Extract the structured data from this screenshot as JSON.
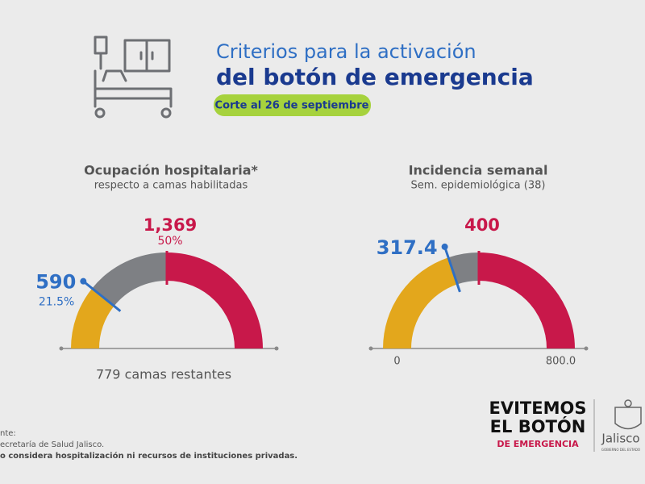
{
  "header": {
    "title_line1": "Criterios para la activación",
    "title_line2": "del botón de emergencia",
    "date": "Corte al 26 de septiembre"
  },
  "chart_data": [
    {
      "type": "gauge",
      "title": "Ocupación hospitalaria*",
      "subtitle": "respecto a camas habilitadas",
      "ylim": [
        0,
        2738
      ],
      "values": [
        590,
        1369
      ],
      "value_labels": [
        "590",
        "1,369"
      ],
      "percents": [
        21.5,
        50
      ],
      "percent_labels": [
        "21.5%",
        "50%"
      ],
      "segment_colors": [
        "#e3a71c",
        "#7e8084",
        "#c8184a"
      ],
      "marker_colors": [
        "#2f6fc4",
        "#c8184a"
      ],
      "annotation": "779 camas restantes"
    },
    {
      "type": "gauge",
      "title": "Incidencia semanal",
      "subtitle": "Sem. epidemiológica (38)",
      "ylim": [
        0,
        800
      ],
      "yticks": [
        0,
        {
          "value": 800,
          "label": "800.0"
        }
      ],
      "values": [
        317.4,
        400
      ],
      "segment_colors": [
        "#e3a71c",
        "#7e8084",
        "#c8184a"
      ],
      "marker_colors": [
        "#2f6fc4",
        "#c8184a"
      ]
    }
  ],
  "footer": {
    "source_label": "nte:",
    "source": "ecretaría de Salud Jalisco.",
    "note": "o considera hospitalización ni recursos de instituciones privadas."
  },
  "logos": {
    "campaign_line1": "EVITEMOS",
    "campaign_line2": "EL BOTÓN",
    "campaign_line3": "DE EMERGENCIA",
    "government": "Jalisco",
    "government_sub": "GOBIERNO DEL ESTADO"
  }
}
